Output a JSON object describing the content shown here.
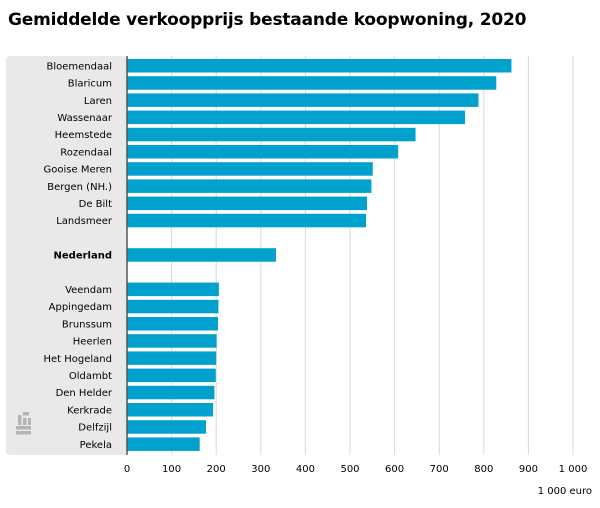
{
  "chart_data": {
    "type": "bar",
    "orientation": "horizontal",
    "title": "Gemiddelde verkoopprijs bestaande koopwoning, 2020",
    "xlabel": "1 000 euro",
    "ylabel": "",
    "xlim": [
      0,
      1000
    ],
    "ticks": [
      0,
      100,
      200,
      300,
      400,
      500,
      600,
      700,
      800,
      900,
      1000
    ],
    "tick_labels": [
      "0",
      "100",
      "200",
      "300",
      "400",
      "500",
      "600",
      "700",
      "800",
      "900",
      "1 000"
    ],
    "grid": true,
    "bar_color": "#00a1cd",
    "panel_color": "#e9e9e9",
    "groups": [
      {
        "categories": [
          "Bloemendaal",
          "Blaricum",
          "Laren",
          "Wassenaar",
          "Heemstede",
          "Rozendaal",
          "Gooise Meren",
          "Bergen (NH.)",
          "De Bilt",
          "Landsmeer"
        ],
        "values": [
          862,
          828,
          788,
          758,
          647,
          608,
          551,
          548,
          538,
          536
        ]
      },
      {
        "categories": [
          "Nederland"
        ],
        "values": [
          334
        ],
        "bold": true
      },
      {
        "categories": [
          "Veendam",
          "Appingedam",
          "Brunssum",
          "Heerlen",
          "Het Hogeland",
          "Oldambt",
          "Den Helder",
          "Kerkrade",
          "Delfzijl",
          "Pekela"
        ],
        "values": [
          206,
          205,
          204,
          201,
          200,
          199,
          196,
          193,
          177,
          163
        ]
      }
    ]
  },
  "logo": {
    "name": "cbs-logo-icon",
    "color": "#b4b4b4"
  }
}
